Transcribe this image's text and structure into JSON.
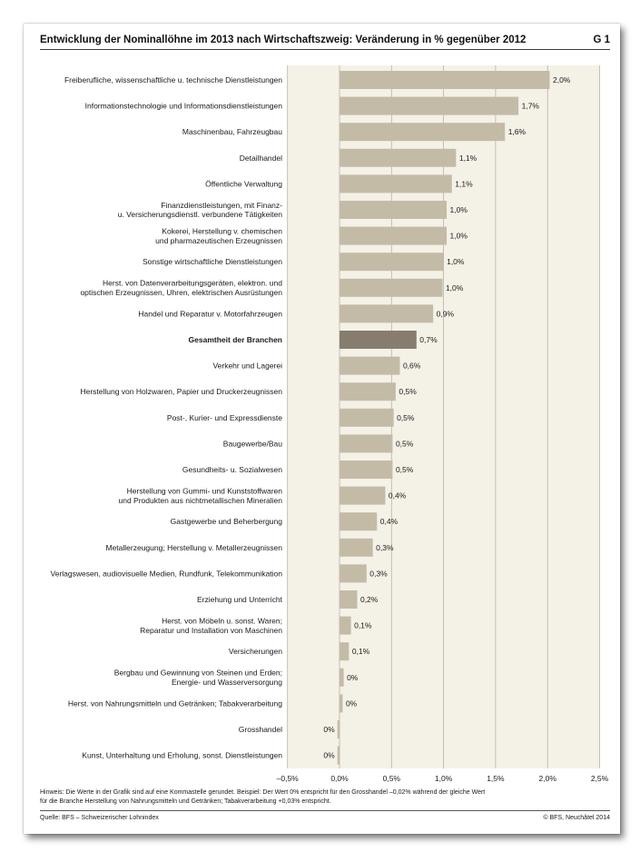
{
  "header": {
    "figure_number": "G 1"
  },
  "chart_data": {
    "type": "bar",
    "orientation": "horizontal",
    "title": "Entwicklung der Nominallöhne im 2013 nach Wirtschaftszweig: Veränderung in % gegenüber 2012",
    "categories": [
      [
        "Freiberufliche, wissenschaftliche u. technische Dienstleistungen"
      ],
      [
        "Informationstechnologie und Informationsdienstleistungen"
      ],
      [
        "Maschinenbau, Fahrzeugbau"
      ],
      [
        "Detailhandel"
      ],
      [
        "Öffentliche Verwaltung"
      ],
      [
        "Finanzdienstleistungen, mit Finanz-",
        "u. Versicherungsdienstl. verbundene Tätigkeiten"
      ],
      [
        "Kokerei, Herstellung v. chemischen",
        "und pharmazeutischen Erzeugnissen"
      ],
      [
        "Sonstige wirtschaftliche Dienstleistungen"
      ],
      [
        "Herst. von Datenverarbeitungsgeräten, elektron. und",
        "optischen Erzeugnissen, Uhren, elektrischen Ausrüstungen"
      ],
      [
        "Handel und Reparatur v. Motorfahrzeugen"
      ],
      [
        "Gesamtheit der Branchen"
      ],
      [
        "Verkehr und Lagerei"
      ],
      [
        "Herstellung von Holzwaren, Papier und Druckerzeugnissen"
      ],
      [
        "Post-, Kurier- und Expressdienste"
      ],
      [
        "Baugewerbe/Bau"
      ],
      [
        "Gesundheits- u. Sozialwesen"
      ],
      [
        "Herstellung von Gummi- und Kunststoffwaren",
        "und Produkten aus nichtmetallischen Mineralien"
      ],
      [
        "Gastgewerbe und Beherbergung"
      ],
      [
        "Metallerzeugung; Herstellung v. Metallerzeugnissen"
      ],
      [
        "Verlagswesen, audiovisuelle Medien, Rundfunk, Telekommunikation"
      ],
      [
        "Erziehung und Unterricht"
      ],
      [
        "Herst. von Möbeln u. sonst. Waren;",
        "Reparatur und Installation von Maschinen"
      ],
      [
        "Versicherungen"
      ],
      [
        "Bergbau und Gewinnung von Steinen und Erden;",
        "Energie- und Wasserversorgung"
      ],
      [
        "Herst. von Nahrungsmitteln und Getränken; Tabakverarbeitung"
      ],
      [
        "Grosshandel"
      ],
      [
        "Kunst, Unterhaltung und Erholung, sonst. Dienstleistungen"
      ]
    ],
    "values": [
      2.02,
      1.72,
      1.59,
      1.12,
      1.08,
      1.03,
      1.03,
      1.0,
      0.99,
      0.9,
      0.74,
      0.58,
      0.54,
      0.52,
      0.51,
      0.51,
      0.44,
      0.36,
      0.32,
      0.26,
      0.17,
      0.11,
      0.09,
      0.04,
      0.03,
      -0.02,
      -0.02
    ],
    "value_labels": [
      "2,0%",
      "1,7%",
      "1,6%",
      "1,1%",
      "1,1%",
      "1,0%",
      "1,0%",
      "1,0%",
      "1,0%",
      "0,9%",
      "0,7%",
      "0,6%",
      "0,5%",
      "0,5%",
      "0,5%",
      "0,5%",
      "0,4%",
      "0,4%",
      "0,3%",
      "0,3%",
      "0,2%",
      "0,1%",
      "0,1%",
      "0%",
      "0%",
      "0%",
      "0%"
    ],
    "highlight_index": 10,
    "xlim": [
      -0.5,
      2.5
    ],
    "xticks": [
      -0.5,
      0,
      0.5,
      1.0,
      1.5,
      2.0,
      2.5
    ],
    "xtick_labels": [
      "–0,5%",
      "0,0%",
      "0,5%",
      "1,0%",
      "1,5%",
      "2,0%",
      "2,5%"
    ],
    "grid": true
  },
  "colors": {
    "bar": "#c4bba7",
    "bar_highlight": "#877d6e",
    "plot_background": "#f4f1e7",
    "grid": "#bab3a3"
  },
  "footnote": [
    "Hinweis: Die Werte in der Grafik sind auf eine Kommastelle gerundet. Beispiel: Der Wert 0% entspricht für den Grosshandel –0,02% während der gleiche Wert",
    "für die Branche Herstellung von Nahrungsmitteln und Getränken; Tabakverarbeitung +0,03% entspricht."
  ],
  "footer": {
    "source": "Quelle: BFS – Schweizerischer Lohnindex",
    "copyright": "© BFS, Neuchâtel 2014"
  }
}
